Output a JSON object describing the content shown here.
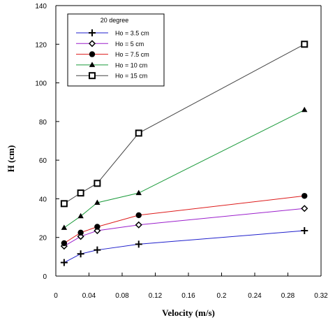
{
  "chart_data": {
    "type": "line",
    "title": "",
    "xlabel": "Velocity (m/s)",
    "ylabel": "H (cm)",
    "xlim": [
      0,
      0.32
    ],
    "ylim": [
      0,
      140
    ],
    "x_ticks": [
      "0",
      "0.04",
      "0.08",
      "0.12",
      "0.16",
      "0.2",
      "0.24",
      "0.28",
      "0.32"
    ],
    "y_ticks": [
      "0",
      "20",
      "40",
      "60",
      "80",
      "100",
      "120",
      "140"
    ],
    "grid": false,
    "legend_title": "20 degree",
    "legend_position": "top-left",
    "series": [
      {
        "name": "Ho = 3.5 cm",
        "marker": "plus",
        "color": "#1f1fcc",
        "x": [
          0.01,
          0.03,
          0.05,
          0.1,
          0.3
        ],
        "y": [
          7,
          11.5,
          13.5,
          16.5,
          23.5
        ]
      },
      {
        "name": "Ho = 5 cm",
        "marker": "diamond-open",
        "color": "#9b1fcc",
        "x": [
          0.01,
          0.03,
          0.05,
          0.1,
          0.3
        ],
        "y": [
          15.5,
          20.5,
          23.5,
          26.5,
          35
        ]
      },
      {
        "name": "Ho = 7.5 cm",
        "marker": "circle-filled",
        "color": "#dd1a1a",
        "x": [
          0.01,
          0.03,
          0.05,
          0.1,
          0.3
        ],
        "y": [
          17,
          22.5,
          25.5,
          31.5,
          41.5
        ]
      },
      {
        "name": "Ho = 10 cm",
        "marker": "triangle-filled",
        "color": "#1a9a3a",
        "x": [
          0.01,
          0.03,
          0.05,
          0.1,
          0.3
        ],
        "y": [
          25,
          31,
          38,
          43,
          86
        ]
      },
      {
        "name": "Ho = 15 cm",
        "marker": "square-open",
        "color": "#444444",
        "x": [
          0.01,
          0.03,
          0.05,
          0.1,
          0.3
        ],
        "y": [
          37.5,
          43,
          48,
          74,
          120
        ]
      }
    ]
  }
}
